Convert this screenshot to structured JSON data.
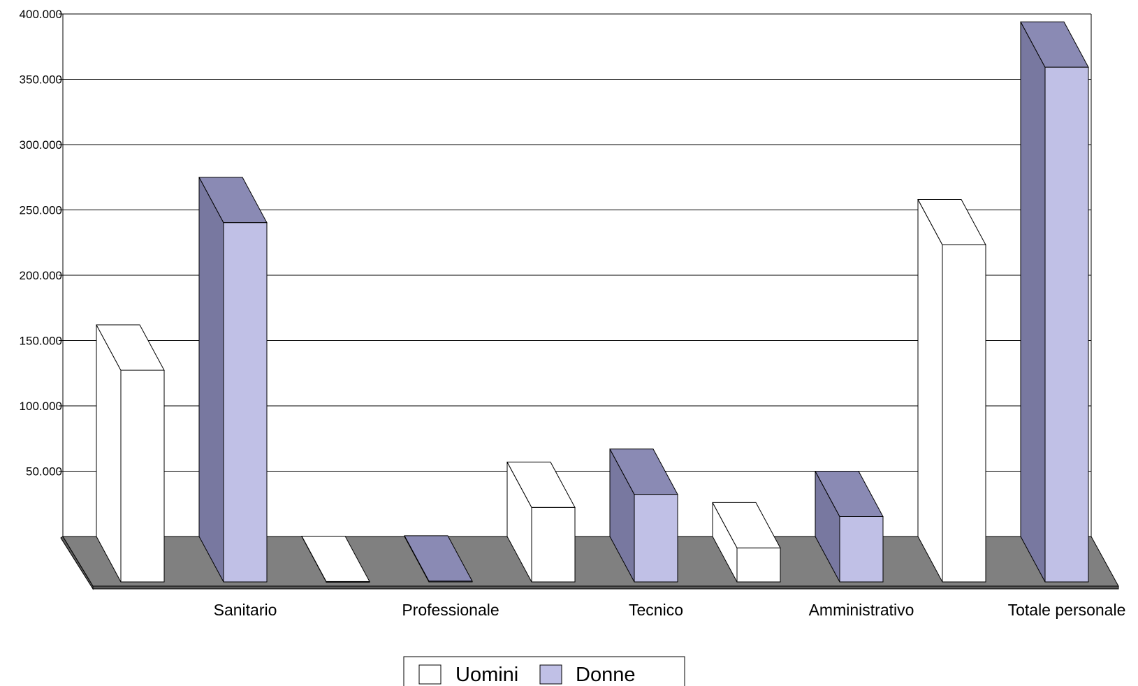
{
  "chart_data": {
    "type": "bar",
    "categories": [
      "Sanitario",
      "Professionale",
      "Tecnico",
      "Amministrativo",
      "Totale personale"
    ],
    "series": [
      {
        "name": "Uomini",
        "values": [
          162000,
          300,
          57000,
          26000,
          258000
        ]
      },
      {
        "name": "Donne",
        "values": [
          275000,
          600,
          67000,
          50000,
          394000
        ]
      }
    ],
    "yticks": [
      "50.000",
      "100.000",
      "150.000",
      "200.000",
      "250.000",
      "300.000",
      "350.000",
      "400.000"
    ],
    "ytick_values": [
      50000,
      100000,
      150000,
      200000,
      250000,
      300000,
      350000,
      400000
    ],
    "ylim": [
      0,
      400000
    ],
    "grid": true,
    "legend": "bottom-center",
    "colors": {
      "Uomini_front": "#ffffff",
      "Uomini_side": "#ffffff",
      "Uomini_top": "#ffffff",
      "Donne_front": "#c0c0e6",
      "Donne_side": "#7878a0",
      "Donne_top": "#8a8ab4",
      "floor": "#808080",
      "floor_edge": "#5a5a5a",
      "grid": "#000000"
    }
  }
}
